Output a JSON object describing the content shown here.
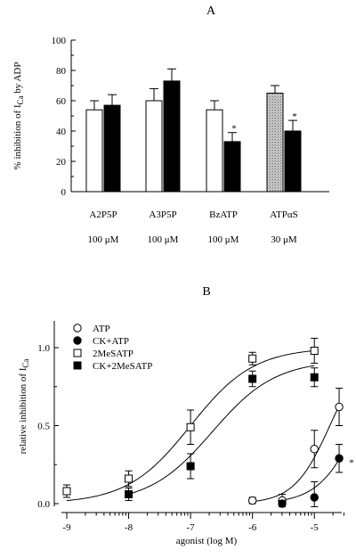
{
  "chart_data": [
    {
      "type": "bar",
      "panel_label": "A",
      "ylabel": "% inhibition of I",
      "ylabel_sub": "Ca",
      "ylabel_tail": " by ADP",
      "ylim": [
        0,
        100
      ],
      "yticks": [
        "0",
        "20",
        "40",
        "60",
        "80",
        "100"
      ],
      "groups": [
        {
          "name": "A2P5P",
          "conc": "100 μM",
          "bars": [
            {
              "fill": "white",
              "value": 54,
              "err": 6
            },
            {
              "fill": "black",
              "value": 57,
              "err": 7,
              "star": false
            }
          ]
        },
        {
          "name": "A3P5P",
          "conc": "100 μM",
          "bars": [
            {
              "fill": "white",
              "value": 60,
              "err": 8
            },
            {
              "fill": "black",
              "value": 73,
              "err": 8,
              "star": false
            }
          ]
        },
        {
          "name": "BzATP",
          "conc": "100 μM",
          "bars": [
            {
              "fill": "white",
              "value": 54,
              "err": 6
            },
            {
              "fill": "black",
              "value": 33,
              "err": 6,
              "star": true
            }
          ]
        },
        {
          "name": "ATPαS",
          "conc": "30 μM",
          "bars": [
            {
              "fill": "stipple",
              "value": 65,
              "err": 5
            },
            {
              "fill": "black",
              "value": 40,
              "err": 7,
              "star": true
            }
          ]
        }
      ],
      "star_text": "*"
    },
    {
      "type": "scatter",
      "panel_label": "B",
      "xlabel": "agonist (log M)",
      "ylabel": "relative inhibition of I",
      "ylabel_sub": "Ca",
      "xlim": [
        -9,
        -4.5
      ],
      "ylim": [
        0,
        1.2
      ],
      "xticks": [
        "-9",
        "-8",
        "-7",
        "-6",
        "-5"
      ],
      "yticks": [
        "0.0",
        "0.5",
        "1.0"
      ],
      "series": [
        {
          "name": "ATP",
          "marker": "circle-open",
          "points": [
            {
              "x": -6,
              "y": 0.02,
              "err": 0.02
            },
            {
              "x": -5.52,
              "y": 0.02,
              "err": 0.04
            },
            {
              "x": -5,
              "y": 0.35,
              "err": 0.12
            },
            {
              "x": -4.6,
              "y": 0.62,
              "err": 0.12
            }
          ]
        },
        {
          "name": "CK+ATP",
          "marker": "circle-filled",
          "points": [
            {
              "x": -5.52,
              "y": 0.0,
              "err": 0.02
            },
            {
              "x": -5,
              "y": 0.04,
              "err": 0.1
            },
            {
              "x": -4.6,
              "y": 0.29,
              "err": 0.09
            }
          ]
        },
        {
          "name": "2MeSATP",
          "marker": "square-open",
          "points": [
            {
              "x": -9,
              "y": 0.08,
              "err": 0.04
            },
            {
              "x": -8,
              "y": 0.16,
              "err": 0.05
            },
            {
              "x": -7,
              "y": 0.49,
              "err": 0.11
            },
            {
              "x": -6,
              "y": 0.93,
              "err": 0.04
            },
            {
              "x": -5,
              "y": 0.98,
              "err": 0.08
            }
          ]
        },
        {
          "name": "CK+2MeSATP",
          "marker": "square-filled",
          "points": [
            {
              "x": -8,
              "y": 0.06,
              "err": 0.04
            },
            {
              "x": -7,
              "y": 0.24,
              "err": 0.08
            },
            {
              "x": -6,
              "y": 0.8,
              "err": 0.05
            },
            {
              "x": -5,
              "y": 0.81,
              "err": 0.06
            }
          ]
        }
      ],
      "fits": [
        {
          "series": "2MeSATP",
          "top": 1.0,
          "log_ec50": -7.0,
          "hill": 0.85
        },
        {
          "series": "CK+2MeSATP",
          "top": 0.92,
          "log_ec50": -6.65,
          "hill": 0.85
        },
        {
          "series": "ATP",
          "top": 1.0,
          "log_ec50": -4.75,
          "hill": 1.5
        },
        {
          "series": "CK+ATP",
          "top": 1.0,
          "log_ec50": -4.3,
          "hill": 1.35
        }
      ],
      "star_text": "*"
    }
  ]
}
